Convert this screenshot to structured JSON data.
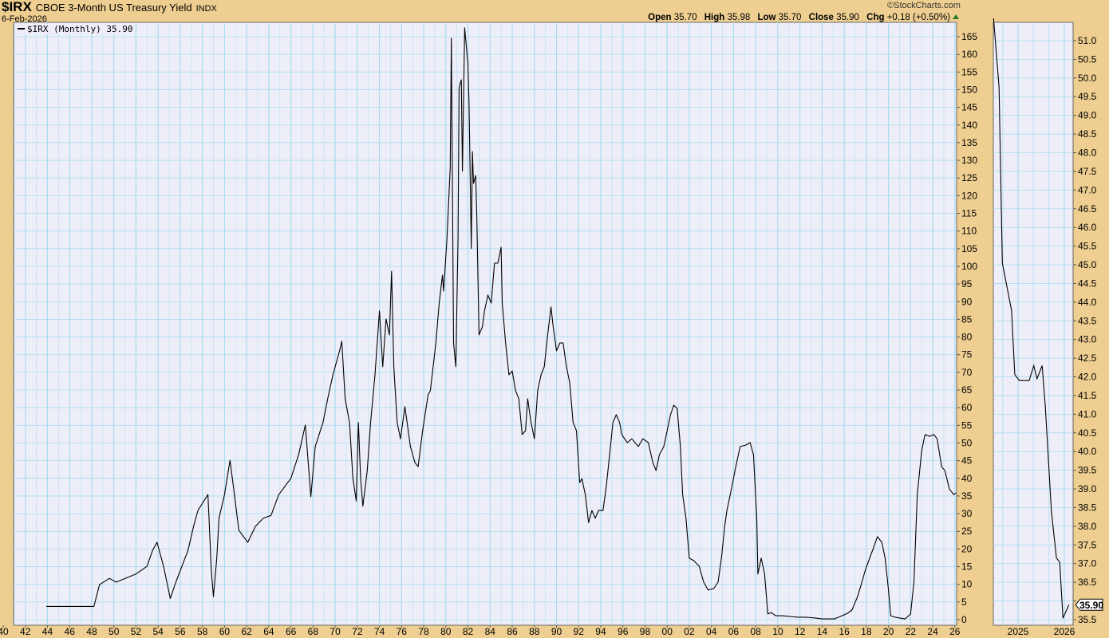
{
  "header": {
    "symbol": "$IRX",
    "name": "CBOE 3-Month US Treasury Yield",
    "exchange": "INDX",
    "date": "6-Feb-2026",
    "watermark": "©StockCharts.com",
    "open_label": "Open",
    "open": "35.70",
    "high_label": "High",
    "high": "35.98",
    "low_label": "Low",
    "low": "35.70",
    "close_label": "Close",
    "close": "35.90",
    "chg_label": "Chg",
    "chg": "+0.18 (+0.50%)",
    "chg_direction": "up",
    "up_color": "#2a7a2a"
  },
  "legend": {
    "label": "$IRX (Monthly) 35.90"
  },
  "colors": {
    "background": "#efcf91",
    "plot_bg": "#eeeef8",
    "grid": "#a9dcf0",
    "line": "#000000"
  },
  "chart_data": [
    {
      "type": "line",
      "title": "",
      "series": [
        {
          "name": "$IRX (Monthly)",
          "points": [
            [
              1943.9,
              3.75
            ],
            [
              1948.2,
              3.75
            ],
            [
              1948.7,
              9.9
            ],
            [
              1949.6,
              11.7
            ],
            [
              1950.2,
              10.6
            ],
            [
              1952.0,
              12.9
            ],
            [
              1953.0,
              15.1
            ],
            [
              1953.5,
              19.6
            ],
            [
              1953.9,
              21.9
            ],
            [
              1954.5,
              15.0
            ],
            [
              1955.1,
              6.0
            ],
            [
              1955.6,
              10.6
            ],
            [
              1956.7,
              19.6
            ],
            [
              1957.2,
              26.4
            ],
            [
              1957.6,
              30.9
            ],
            [
              1958.5,
              35.4
            ],
            [
              1958.6,
              28.7
            ],
            [
              1958.8,
              14.0
            ],
            [
              1959.0,
              6.5
            ],
            [
              1959.3,
              17.4
            ],
            [
              1959.5,
              28.7
            ],
            [
              1960.0,
              35.4
            ],
            [
              1960.5,
              45.1
            ],
            [
              1960.8,
              37.7
            ],
            [
              1961.3,
              25.3
            ],
            [
              1962.1,
              21.9
            ],
            [
              1962.8,
              26.4
            ],
            [
              1963.5,
              28.7
            ],
            [
              1964.2,
              29.5
            ],
            [
              1964.9,
              35.4
            ],
            [
              1966.0,
              40.0
            ],
            [
              1966.7,
              46.7
            ],
            [
              1967.3,
              55.1
            ],
            [
              1967.8,
              34.8
            ],
            [
              1968.2,
              49.0
            ],
            [
              1968.9,
              55.8
            ],
            [
              1969.4,
              63.7
            ],
            [
              1969.8,
              69.3
            ],
            [
              1970.4,
              76.1
            ],
            [
              1970.6,
              78.8
            ],
            [
              1970.9,
              62.5
            ],
            [
              1971.3,
              55.8
            ],
            [
              1971.6,
              40.0
            ],
            [
              1971.9,
              33.6
            ],
            [
              1972.1,
              55.8
            ],
            [
              1972.3,
              40.0
            ],
            [
              1972.5,
              32.1
            ],
            [
              1972.9,
              42.2
            ],
            [
              1973.2,
              55.8
            ],
            [
              1973.6,
              69.3
            ],
            [
              1974.0,
              87.4
            ],
            [
              1974.3,
              71.6
            ],
            [
              1974.6,
              85.1
            ],
            [
              1974.9,
              80.6
            ],
            [
              1975.1,
              98.6
            ],
            [
              1975.3,
              71.6
            ],
            [
              1975.6,
              55.8
            ],
            [
              1975.9,
              51.2
            ],
            [
              1976.3,
              60.3
            ],
            [
              1976.8,
              49.0
            ],
            [
              1977.2,
              44.5
            ],
            [
              1977.5,
              43.3
            ],
            [
              1977.9,
              53.5
            ],
            [
              1978.4,
              63.7
            ],
            [
              1978.6,
              64.8
            ],
            [
              1979.1,
              78.3
            ],
            [
              1979.4,
              89.6
            ],
            [
              1979.7,
              97.5
            ],
            [
              1979.8,
              93.0
            ],
            [
              1980.1,
              107.7
            ],
            [
              1980.4,
              128.0
            ],
            [
              1980.5,
              164.6
            ],
            [
              1980.7,
              78.3
            ],
            [
              1980.9,
              71.6
            ],
            [
              1981.1,
              107.7
            ],
            [
              1981.2,
              150.6
            ],
            [
              1981.4,
              152.8
            ],
            [
              1981.5,
              126.9
            ],
            [
              1981.7,
              167.5
            ],
            [
              1982.0,
              157.3
            ],
            [
              1982.1,
              146.0
            ],
            [
              1982.3,
              105.0
            ],
            [
              1982.4,
              132.5
            ],
            [
              1982.5,
              123.5
            ],
            [
              1982.7,
              125.7
            ],
            [
              1982.8,
              114.4
            ],
            [
              1983.0,
              80.6
            ],
            [
              1983.3,
              82.9
            ],
            [
              1983.5,
              87.4
            ],
            [
              1983.8,
              91.9
            ],
            [
              1984.1,
              89.6
            ],
            [
              1984.4,
              100.9
            ],
            [
              1984.7,
              100.9
            ],
            [
              1985.0,
              105.4
            ],
            [
              1985.1,
              89.6
            ],
            [
              1985.4,
              78.3
            ],
            [
              1985.7,
              69.3
            ],
            [
              1986.0,
              70.4
            ],
            [
              1986.3,
              64.8
            ],
            [
              1986.6,
              62.5
            ],
            [
              1986.9,
              52.4
            ],
            [
              1987.2,
              53.5
            ],
            [
              1987.4,
              62.5
            ],
            [
              1987.7,
              55.8
            ],
            [
              1988.0,
              51.2
            ],
            [
              1988.3,
              64.8
            ],
            [
              1988.6,
              69.3
            ],
            [
              1988.9,
              71.6
            ],
            [
              1989.2,
              80.6
            ],
            [
              1989.5,
              88.5
            ],
            [
              1989.7,
              83.0
            ],
            [
              1990.0,
              76.1
            ],
            [
              1990.3,
              78.3
            ],
            [
              1990.6,
              78.3
            ],
            [
              1990.9,
              71.6
            ],
            [
              1991.2,
              67.0
            ],
            [
              1991.5,
              55.8
            ],
            [
              1991.8,
              53.5
            ],
            [
              1992.1,
              38.8
            ],
            [
              1992.3,
              39.9
            ],
            [
              1992.6,
              35.4
            ],
            [
              1992.9,
              27.5
            ],
            [
              1993.2,
              30.9
            ],
            [
              1993.5,
              28.7
            ],
            [
              1993.8,
              30.9
            ],
            [
              1994.2,
              30.9
            ],
            [
              1994.5,
              37.7
            ],
            [
              1994.8,
              46.7
            ],
            [
              1995.1,
              55.8
            ],
            [
              1995.4,
              58.0
            ],
            [
              1995.7,
              55.8
            ],
            [
              1995.9,
              52.4
            ],
            [
              1996.4,
              50.1
            ],
            [
              1996.8,
              51.2
            ],
            [
              1997.4,
              49.0
            ],
            [
              1997.8,
              51.2
            ],
            [
              1998.3,
              50.1
            ],
            [
              1998.7,
              44.5
            ],
            [
              1999.0,
              42.2
            ],
            [
              1999.3,
              46.7
            ],
            [
              1999.7,
              49.0
            ],
            [
              2000.0,
              53.5
            ],
            [
              2000.3,
              58.0
            ],
            [
              2000.6,
              60.7
            ],
            [
              2000.9,
              59.8
            ],
            [
              2001.2,
              49.0
            ],
            [
              2001.4,
              35.4
            ],
            [
              2001.7,
              28.7
            ],
            [
              2002.0,
              17.4
            ],
            [
              2002.4,
              16.7
            ],
            [
              2002.9,
              15.1
            ],
            [
              2003.3,
              10.6
            ],
            [
              2003.7,
              8.4
            ],
            [
              2004.2,
              8.8
            ],
            [
              2004.6,
              10.6
            ],
            [
              2004.9,
              17.4
            ],
            [
              2005.2,
              26.4
            ],
            [
              2005.4,
              30.9
            ],
            [
              2005.7,
              35.4
            ],
            [
              2006.2,
              43.3
            ],
            [
              2006.6,
              49.0
            ],
            [
              2007.1,
              49.4
            ],
            [
              2007.5,
              50.1
            ],
            [
              2007.8,
              46.7
            ],
            [
              2008.1,
              28.7
            ],
            [
              2008.2,
              12.9
            ],
            [
              2008.5,
              17.4
            ],
            [
              2008.8,
              12.9
            ],
            [
              2009.1,
              1.6
            ],
            [
              2009.4,
              2.0
            ],
            [
              2009.8,
              1.1
            ],
            [
              2010.4,
              1.1
            ],
            [
              2011.1,
              0.9
            ],
            [
              2011.8,
              0.7
            ],
            [
              2012.5,
              0.7
            ],
            [
              2013.3,
              0.5
            ],
            [
              2014.0,
              0.2
            ],
            [
              2015.1,
              0.2
            ],
            [
              2015.8,
              1.1
            ],
            [
              2016.3,
              1.8
            ],
            [
              2016.7,
              2.7
            ],
            [
              2017.2,
              6.5
            ],
            [
              2017.6,
              10.6
            ],
            [
              2017.9,
              14.0
            ],
            [
              2018.3,
              17.4
            ],
            [
              2018.7,
              20.8
            ],
            [
              2019.0,
              23.5
            ],
            [
              2019.4,
              21.9
            ],
            [
              2019.7,
              17.4
            ],
            [
              2020.0,
              8.4
            ],
            [
              2020.2,
              1.1
            ],
            [
              2020.6,
              0.7
            ],
            [
              2021.5,
              0.2
            ],
            [
              2022.0,
              1.6
            ],
            [
              2022.3,
              10.6
            ],
            [
              2022.6,
              35.4
            ],
            [
              2023.0,
              47.8
            ],
            [
              2023.3,
              52.4
            ],
            [
              2023.7,
              51.9
            ],
            [
              2024.1,
              52.4
            ],
            [
              2024.4,
              51.2
            ],
            [
              2024.8,
              43.3
            ],
            [
              2025.1,
              42.2
            ],
            [
              2025.5,
              37.0
            ],
            [
              2025.9,
              35.4
            ],
            [
              2026.1,
              35.9
            ]
          ]
        }
      ],
      "xlabel": "",
      "ylabel": "",
      "xlim": [
        1940,
        2026.2
      ],
      "ylim": [
        0,
        170
      ],
      "x_tick_labels": [
        "40",
        "42",
        "44",
        "46",
        "48",
        "50",
        "52",
        "54",
        "56",
        "58",
        "60",
        "62",
        "64",
        "66",
        "68",
        "70",
        "72",
        "74",
        "76",
        "78",
        "80",
        "82",
        "84",
        "86",
        "88",
        "90",
        "92",
        "94",
        "96",
        "98",
        "00",
        "02",
        "04",
        "06",
        "08",
        "10",
        "12",
        "14",
        "16",
        "18",
        "20",
        "22",
        "24",
        "26"
      ],
      "y_ticks": [
        0,
        5,
        10,
        15,
        20,
        25,
        30,
        35,
        40,
        45,
        50,
        55,
        60,
        65,
        70,
        75,
        80,
        85,
        90,
        95,
        100,
        105,
        110,
        115,
        120,
        125,
        130,
        135,
        140,
        145,
        150,
        155,
        160,
        165
      ],
      "grid": true,
      "legend": "top-left"
    },
    {
      "type": "line",
      "title": "",
      "series": [
        {
          "points": [
            [
              2024.47,
              51.6
            ],
            [
              2024.59,
              49.75
            ],
            [
              2024.66,
              45.05
            ],
            [
              2024.86,
              43.77
            ],
            [
              2024.93,
              42.06
            ],
            [
              2025.03,
              41.9
            ],
            [
              2025.24,
              41.9
            ],
            [
              2025.34,
              42.3
            ],
            [
              2025.41,
              41.95
            ],
            [
              2025.52,
              42.3
            ],
            [
              2025.59,
              41.2
            ],
            [
              2025.72,
              38.4
            ],
            [
              2025.83,
              37.15
            ],
            [
              2025.9,
              37.04
            ],
            [
              2025.97,
              35.54
            ],
            [
              2026.1,
              35.9
            ]
          ]
        }
      ],
      "xlim": [
        2024.47,
        2026.2
      ],
      "ylim": [
        35.35,
        51.5
      ],
      "x_tick_labels": [
        "2025",
        "2026"
      ],
      "y_ticks": [
        "35.5",
        "36.0",
        "36.5",
        "37.0",
        "37.5",
        "38.0",
        "38.5",
        "39.0",
        "39.5",
        "40.0",
        "40.5",
        "41.0",
        "41.5",
        "42.0",
        "42.5",
        "43.0",
        "43.5",
        "44.0",
        "44.5",
        "45.0",
        "45.5",
        "46.0",
        "46.5",
        "47.0",
        "47.5",
        "48.0",
        "48.5",
        "49.0",
        "49.5",
        "50.0",
        "50.5",
        "51.0"
      ],
      "last_value_label": "35.90",
      "grid": true
    }
  ]
}
